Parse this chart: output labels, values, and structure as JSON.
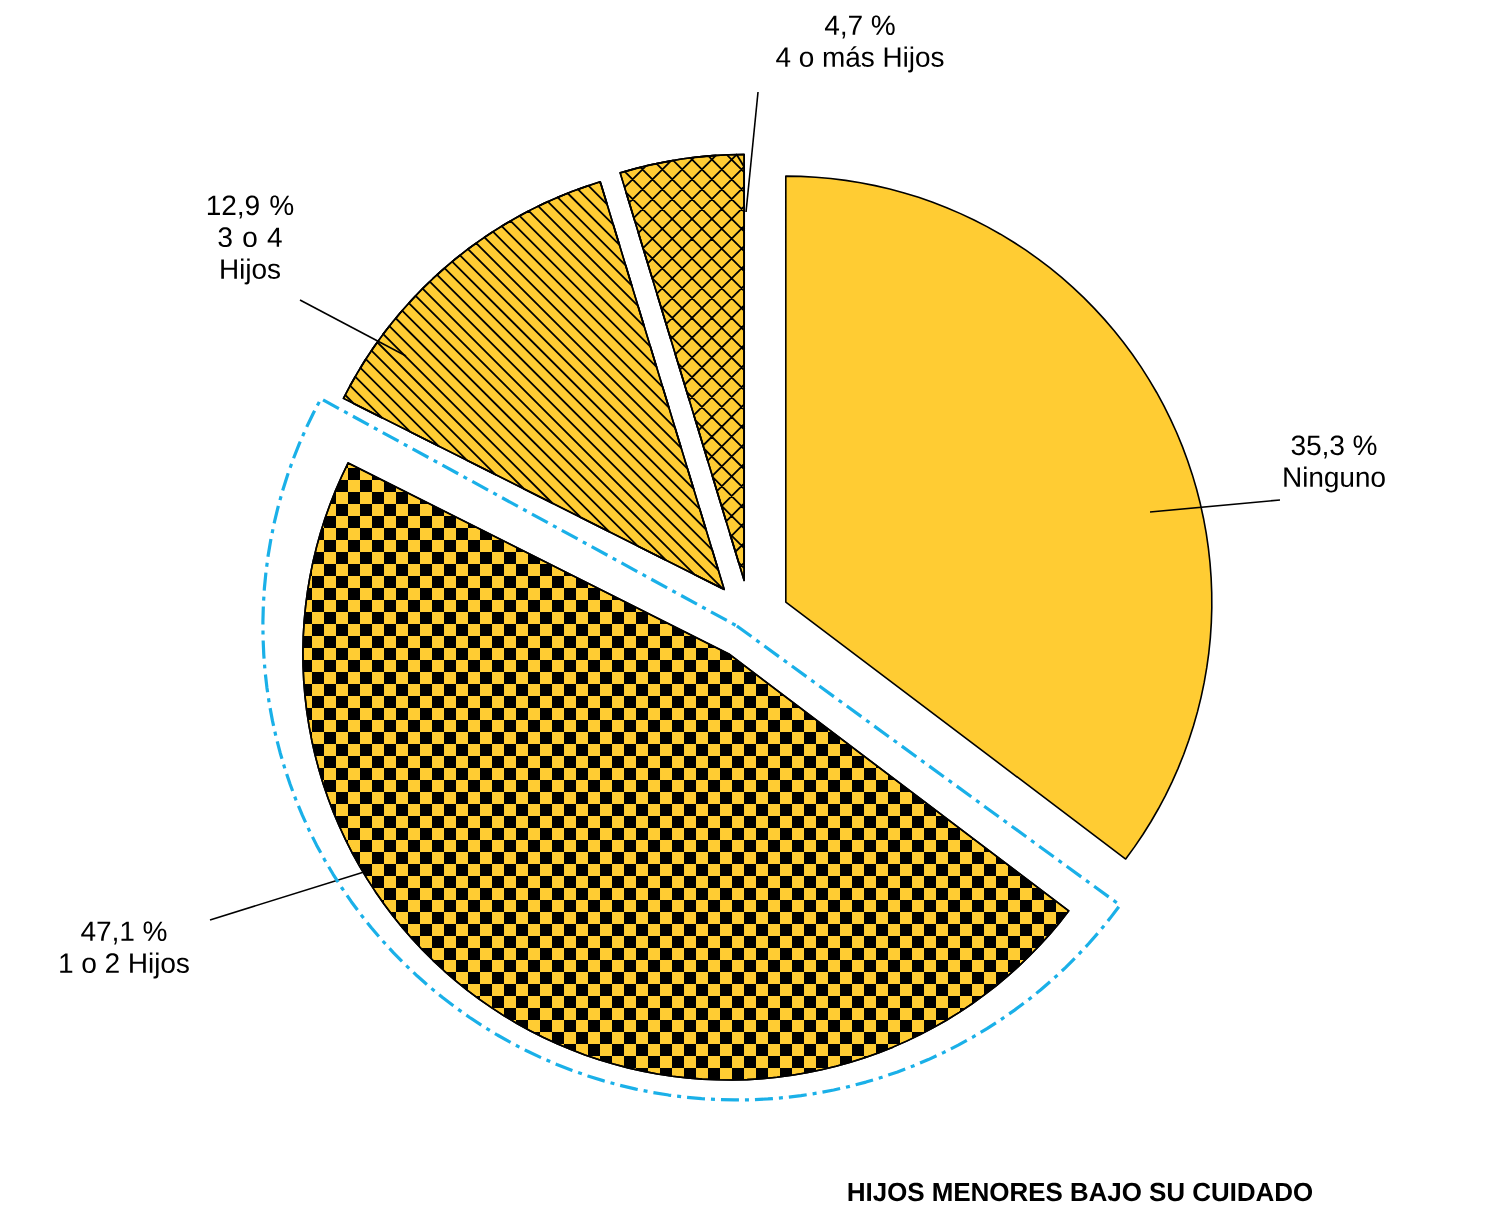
{
  "chart_data": {
    "type": "pie",
    "title": "HIJOS MENORES BAJO SU CUIDADO",
    "categories": [
      "Ninguno",
      "1 o 2 Hijos",
      "3 o 4 Hijos",
      "4 o más Hijos"
    ],
    "values": [
      35.3,
      47.1,
      12.9,
      4.7
    ],
    "value_labels": [
      "35,3 %",
      "47,1 %",
      "12,9 %",
      "4,7 %"
    ],
    "colors": [
      "#ffcc33",
      "#ffcc33",
      "#ffcc33",
      "#ffcc33"
    ]
  }
}
